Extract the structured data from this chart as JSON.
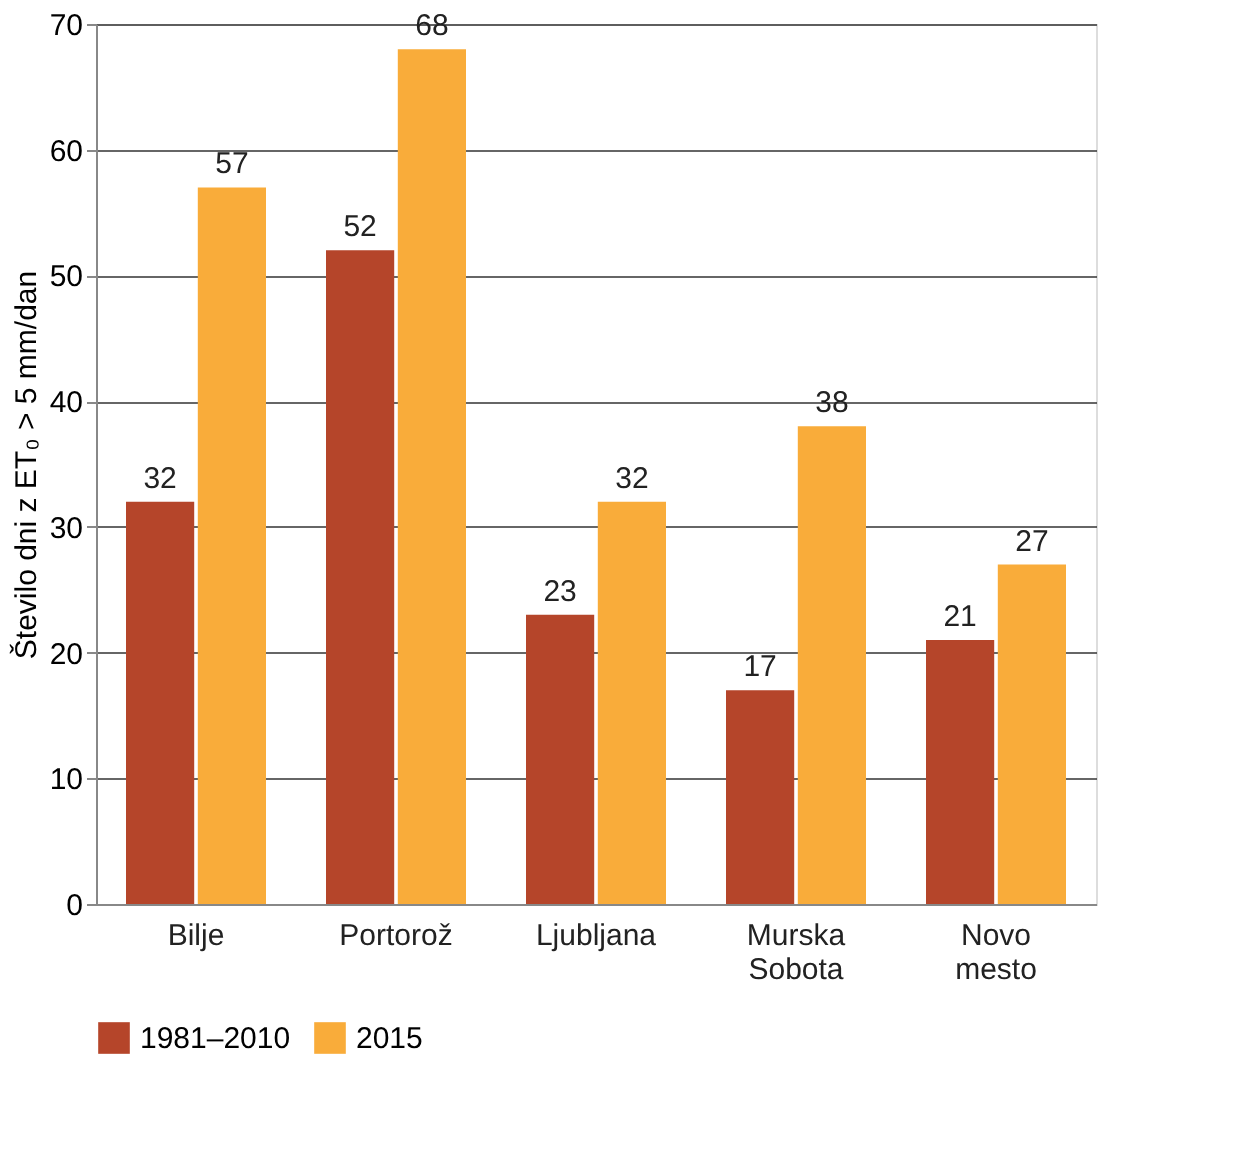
{
  "chart_data": {
    "type": "bar",
    "ylabel": "Število dni z ET₀ > 5 mm/dan",
    "categories": [
      "Bilje",
      "Portorož",
      "Ljubljana",
      "Murska Sobota",
      "Novo mesto"
    ],
    "series": [
      {
        "name": "1981–2010",
        "color": "#b5452a",
        "values": [
          32,
          52,
          23,
          17,
          21
        ]
      },
      {
        "name": "2015",
        "color": "#f9ac3a",
        "values": [
          57,
          68,
          32,
          38,
          27
        ]
      }
    ],
    "ylim": [
      0,
      70
    ],
    "yticks": [
      0,
      10,
      20,
      30,
      40,
      50,
      60,
      70
    ],
    "grid": "y",
    "legend": "bottom",
    "data_labels": true
  }
}
